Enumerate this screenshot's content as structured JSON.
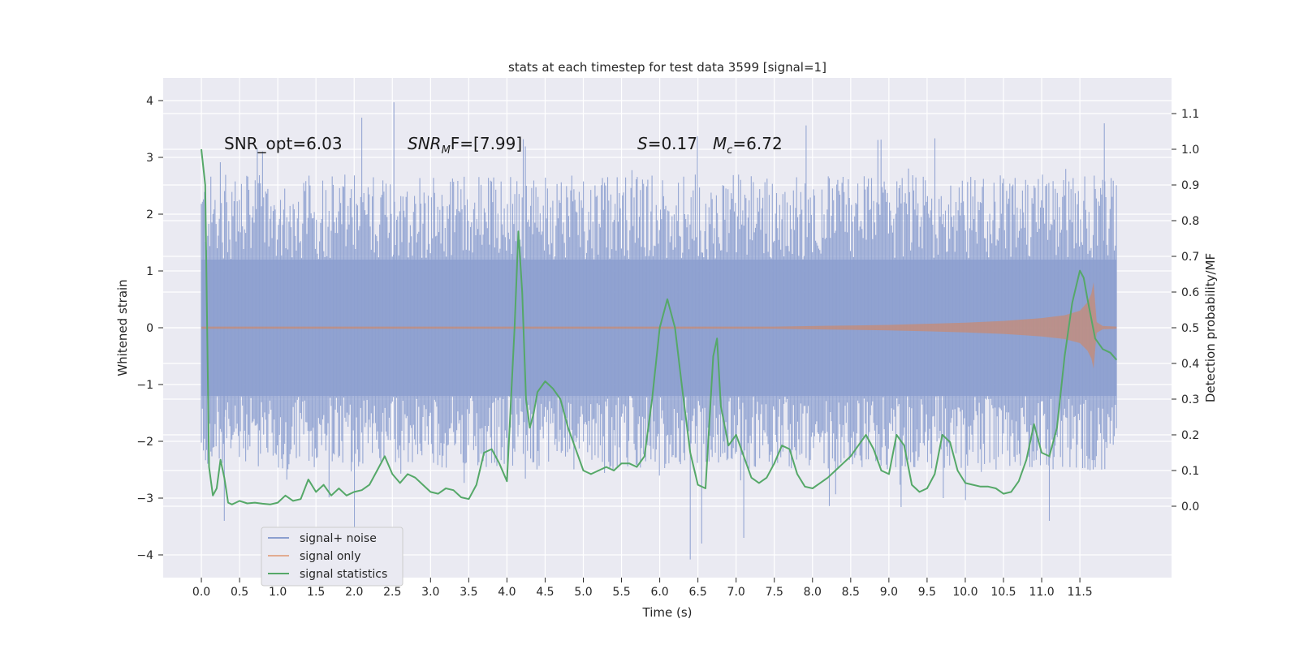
{
  "chart_data": {
    "type": "line",
    "title": "stats at each timestep for test data 3599 [signal=1]",
    "xlabel": "Time (s)",
    "ylabel_left": "Whitened strain",
    "ylabel_right": "Detection probability/MF",
    "xlim": [
      -0.5,
      12.7
    ],
    "ylim_left": [
      -4.4,
      4.4
    ],
    "ylim_right": [
      -0.2,
      1.2
    ],
    "x_ticks": [
      0.0,
      0.5,
      1.0,
      1.5,
      2.0,
      2.5,
      3.0,
      3.5,
      4.0,
      4.5,
      5.0,
      5.5,
      6.0,
      6.5,
      7.0,
      7.5,
      8.0,
      8.5,
      9.0,
      9.5,
      10.0,
      10.5,
      11.0,
      11.5
    ],
    "x_tick_labels": [
      "0.0",
      "0.5",
      "1.0",
      "1.5",
      "2.0",
      "2.5",
      "3.0",
      "3.5",
      "4.0",
      "4.5",
      "5.0",
      "5.5",
      "6.0",
      "6.5",
      "7.0",
      "7.5",
      "8.0",
      "8.5",
      "9.0",
      "9.5",
      "10.0",
      "10.5",
      "11.0",
      "11.5"
    ],
    "y_left_ticks": [
      -4,
      -3,
      -2,
      -1,
      0,
      1,
      2,
      3,
      4
    ],
    "y_left_tick_labels": [
      "−4",
      "−3",
      "−2",
      "−1",
      "0",
      "1",
      "2",
      "3",
      "4"
    ],
    "y_right_ticks": [
      0.0,
      0.1,
      0.2,
      0.3,
      0.4,
      0.5,
      0.6,
      0.7,
      0.8,
      0.9,
      1.0,
      1.1
    ],
    "y_right_tick_labels": [
      "0.0",
      "0.1",
      "0.2",
      "0.3",
      "0.4",
      "0.5",
      "0.6",
      "0.7",
      "0.8",
      "0.9",
      "1.0",
      "1.1"
    ],
    "grid": true,
    "legend_position": "lower-left",
    "annotations": {
      "snr_opt": "SNR_opt=6.03",
      "snr_mf_base": "SNR",
      "snr_mf_sub": "M",
      "snr_mf_rest": "F=[7.99]",
      "s_var": "S",
      "s_rest": "=0.17",
      "mc_var": "M",
      "mc_sub": "c",
      "mc_rest": "=6.72",
      "annotation_y": 3.2
    },
    "series": [
      {
        "name": "signal+ noise",
        "kind": "noise",
        "axis": "left",
        "color": "#8c9fcf",
        "x_range": [
          0.0,
          11.98
        ],
        "core_amplitude": 1.2,
        "max_positive": 3.97,
        "min_negative": -4.08
      },
      {
        "name": "signal only",
        "kind": "chirp-envelope",
        "axis": "left",
        "color": "#dd8452",
        "envelope_x": [
          0.0,
          7.5,
          8.0,
          8.5,
          9.0,
          9.5,
          10.0,
          10.5,
          11.0,
          11.3,
          11.5,
          11.6,
          11.65,
          11.68,
          11.72,
          11.8,
          11.98
        ],
        "envelope_y": [
          0.02,
          0.02,
          0.03,
          0.04,
          0.05,
          0.07,
          0.09,
          0.12,
          0.17,
          0.22,
          0.3,
          0.45,
          0.6,
          0.8,
          0.1,
          0.03,
          0.02
        ]
      },
      {
        "name": "signal statistics",
        "kind": "line",
        "axis": "right",
        "color": "#55a868",
        "x": [
          0.0,
          0.05,
          0.1,
          0.15,
          0.2,
          0.25,
          0.3,
          0.35,
          0.4,
          0.45,
          0.5,
          0.6,
          0.7,
          0.8,
          0.9,
          1.0,
          1.1,
          1.2,
          1.3,
          1.4,
          1.5,
          1.6,
          1.7,
          1.8,
          1.9,
          2.0,
          2.1,
          2.2,
          2.3,
          2.4,
          2.5,
          2.6,
          2.7,
          2.8,
          2.9,
          3.0,
          3.1,
          3.2,
          3.3,
          3.4,
          3.5,
          3.6,
          3.7,
          3.8,
          3.9,
          4.0,
          4.1,
          4.15,
          4.2,
          4.25,
          4.3,
          4.35,
          4.4,
          4.5,
          4.6,
          4.7,
          4.8,
          4.9,
          5.0,
          5.1,
          5.2,
          5.3,
          5.4,
          5.5,
          5.6,
          5.7,
          5.8,
          5.9,
          6.0,
          6.1,
          6.2,
          6.3,
          6.4,
          6.5,
          6.6,
          6.7,
          6.75,
          6.8,
          6.9,
          7.0,
          7.1,
          7.2,
          7.3,
          7.4,
          7.5,
          7.6,
          7.7,
          7.8,
          7.9,
          8.0,
          8.1,
          8.2,
          8.3,
          8.4,
          8.5,
          8.6,
          8.7,
          8.8,
          8.9,
          9.0,
          9.1,
          9.2,
          9.3,
          9.4,
          9.5,
          9.6,
          9.7,
          9.8,
          9.9,
          10.0,
          10.1,
          10.2,
          10.3,
          10.4,
          10.5,
          10.6,
          10.7,
          10.8,
          10.9,
          11.0,
          11.1,
          11.2,
          11.3,
          11.4,
          11.5,
          11.55,
          11.6,
          11.7,
          11.8,
          11.9,
          11.98
        ],
        "y": [
          1.0,
          0.9,
          0.11,
          0.03,
          0.05,
          0.13,
          0.08,
          0.01,
          0.005,
          0.01,
          0.015,
          0.008,
          0.01,
          0.007,
          0.005,
          0.01,
          0.03,
          0.015,
          0.02,
          0.075,
          0.04,
          0.06,
          0.03,
          0.05,
          0.03,
          0.04,
          0.045,
          0.06,
          0.1,
          0.14,
          0.09,
          0.065,
          0.09,
          0.08,
          0.06,
          0.04,
          0.035,
          0.05,
          0.045,
          0.025,
          0.02,
          0.06,
          0.15,
          0.16,
          0.12,
          0.07,
          0.5,
          0.77,
          0.6,
          0.3,
          0.22,
          0.26,
          0.32,
          0.35,
          0.33,
          0.3,
          0.22,
          0.16,
          0.1,
          0.09,
          0.1,
          0.11,
          0.1,
          0.12,
          0.12,
          0.11,
          0.14,
          0.3,
          0.5,
          0.58,
          0.5,
          0.32,
          0.15,
          0.06,
          0.05,
          0.42,
          0.47,
          0.28,
          0.17,
          0.2,
          0.14,
          0.08,
          0.065,
          0.08,
          0.12,
          0.17,
          0.16,
          0.09,
          0.055,
          0.05,
          0.065,
          0.08,
          0.1,
          0.12,
          0.14,
          0.17,
          0.2,
          0.16,
          0.1,
          0.09,
          0.2,
          0.17,
          0.06,
          0.04,
          0.05,
          0.09,
          0.2,
          0.18,
          0.1,
          0.065,
          0.06,
          0.055,
          0.055,
          0.05,
          0.035,
          0.04,
          0.07,
          0.13,
          0.23,
          0.15,
          0.14,
          0.22,
          0.42,
          0.57,
          0.66,
          0.64,
          0.58,
          0.47,
          0.44,
          0.43,
          0.41
        ]
      }
    ]
  }
}
